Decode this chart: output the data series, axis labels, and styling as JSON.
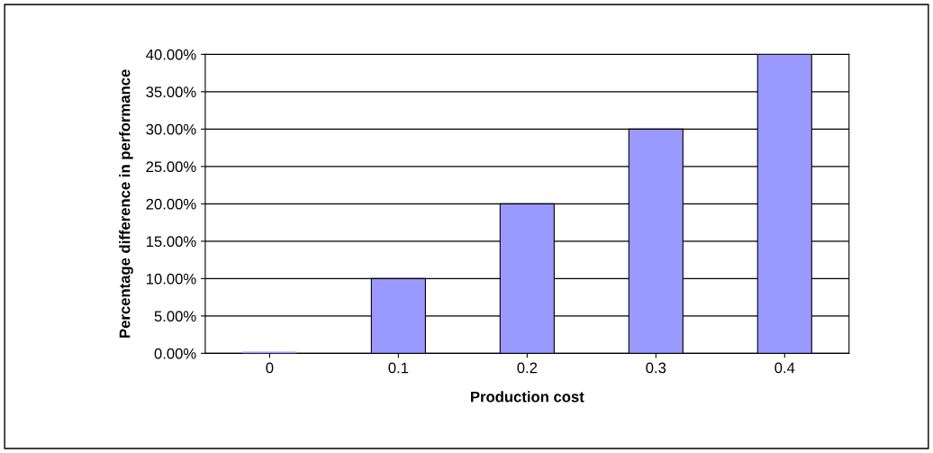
{
  "chart_data": {
    "type": "bar",
    "xlabel": "Production cost",
    "ylabel": "Percentage difference in performance",
    "categories": [
      "0",
      "0.1",
      "0.2",
      "0.3",
      "0.4"
    ],
    "values": [
      0,
      10,
      20,
      30,
      40
    ],
    "color": "#9999ff",
    "ylim": [
      0,
      40
    ],
    "yticks": [
      {
        "value": 0,
        "label": "0.00%"
      },
      {
        "value": 5,
        "label": "5.00%"
      },
      {
        "value": 10,
        "label": "10.00%"
      },
      {
        "value": 15,
        "label": "15.00%"
      },
      {
        "value": 20,
        "label": "20.00%"
      },
      {
        "value": 25,
        "label": "25.00%"
      },
      {
        "value": 30,
        "label": "30.00%"
      },
      {
        "value": 35,
        "label": "35.00%"
      },
      {
        "value": 40,
        "label": "40.00%"
      }
    ],
    "grid": "y",
    "legend": false
  }
}
